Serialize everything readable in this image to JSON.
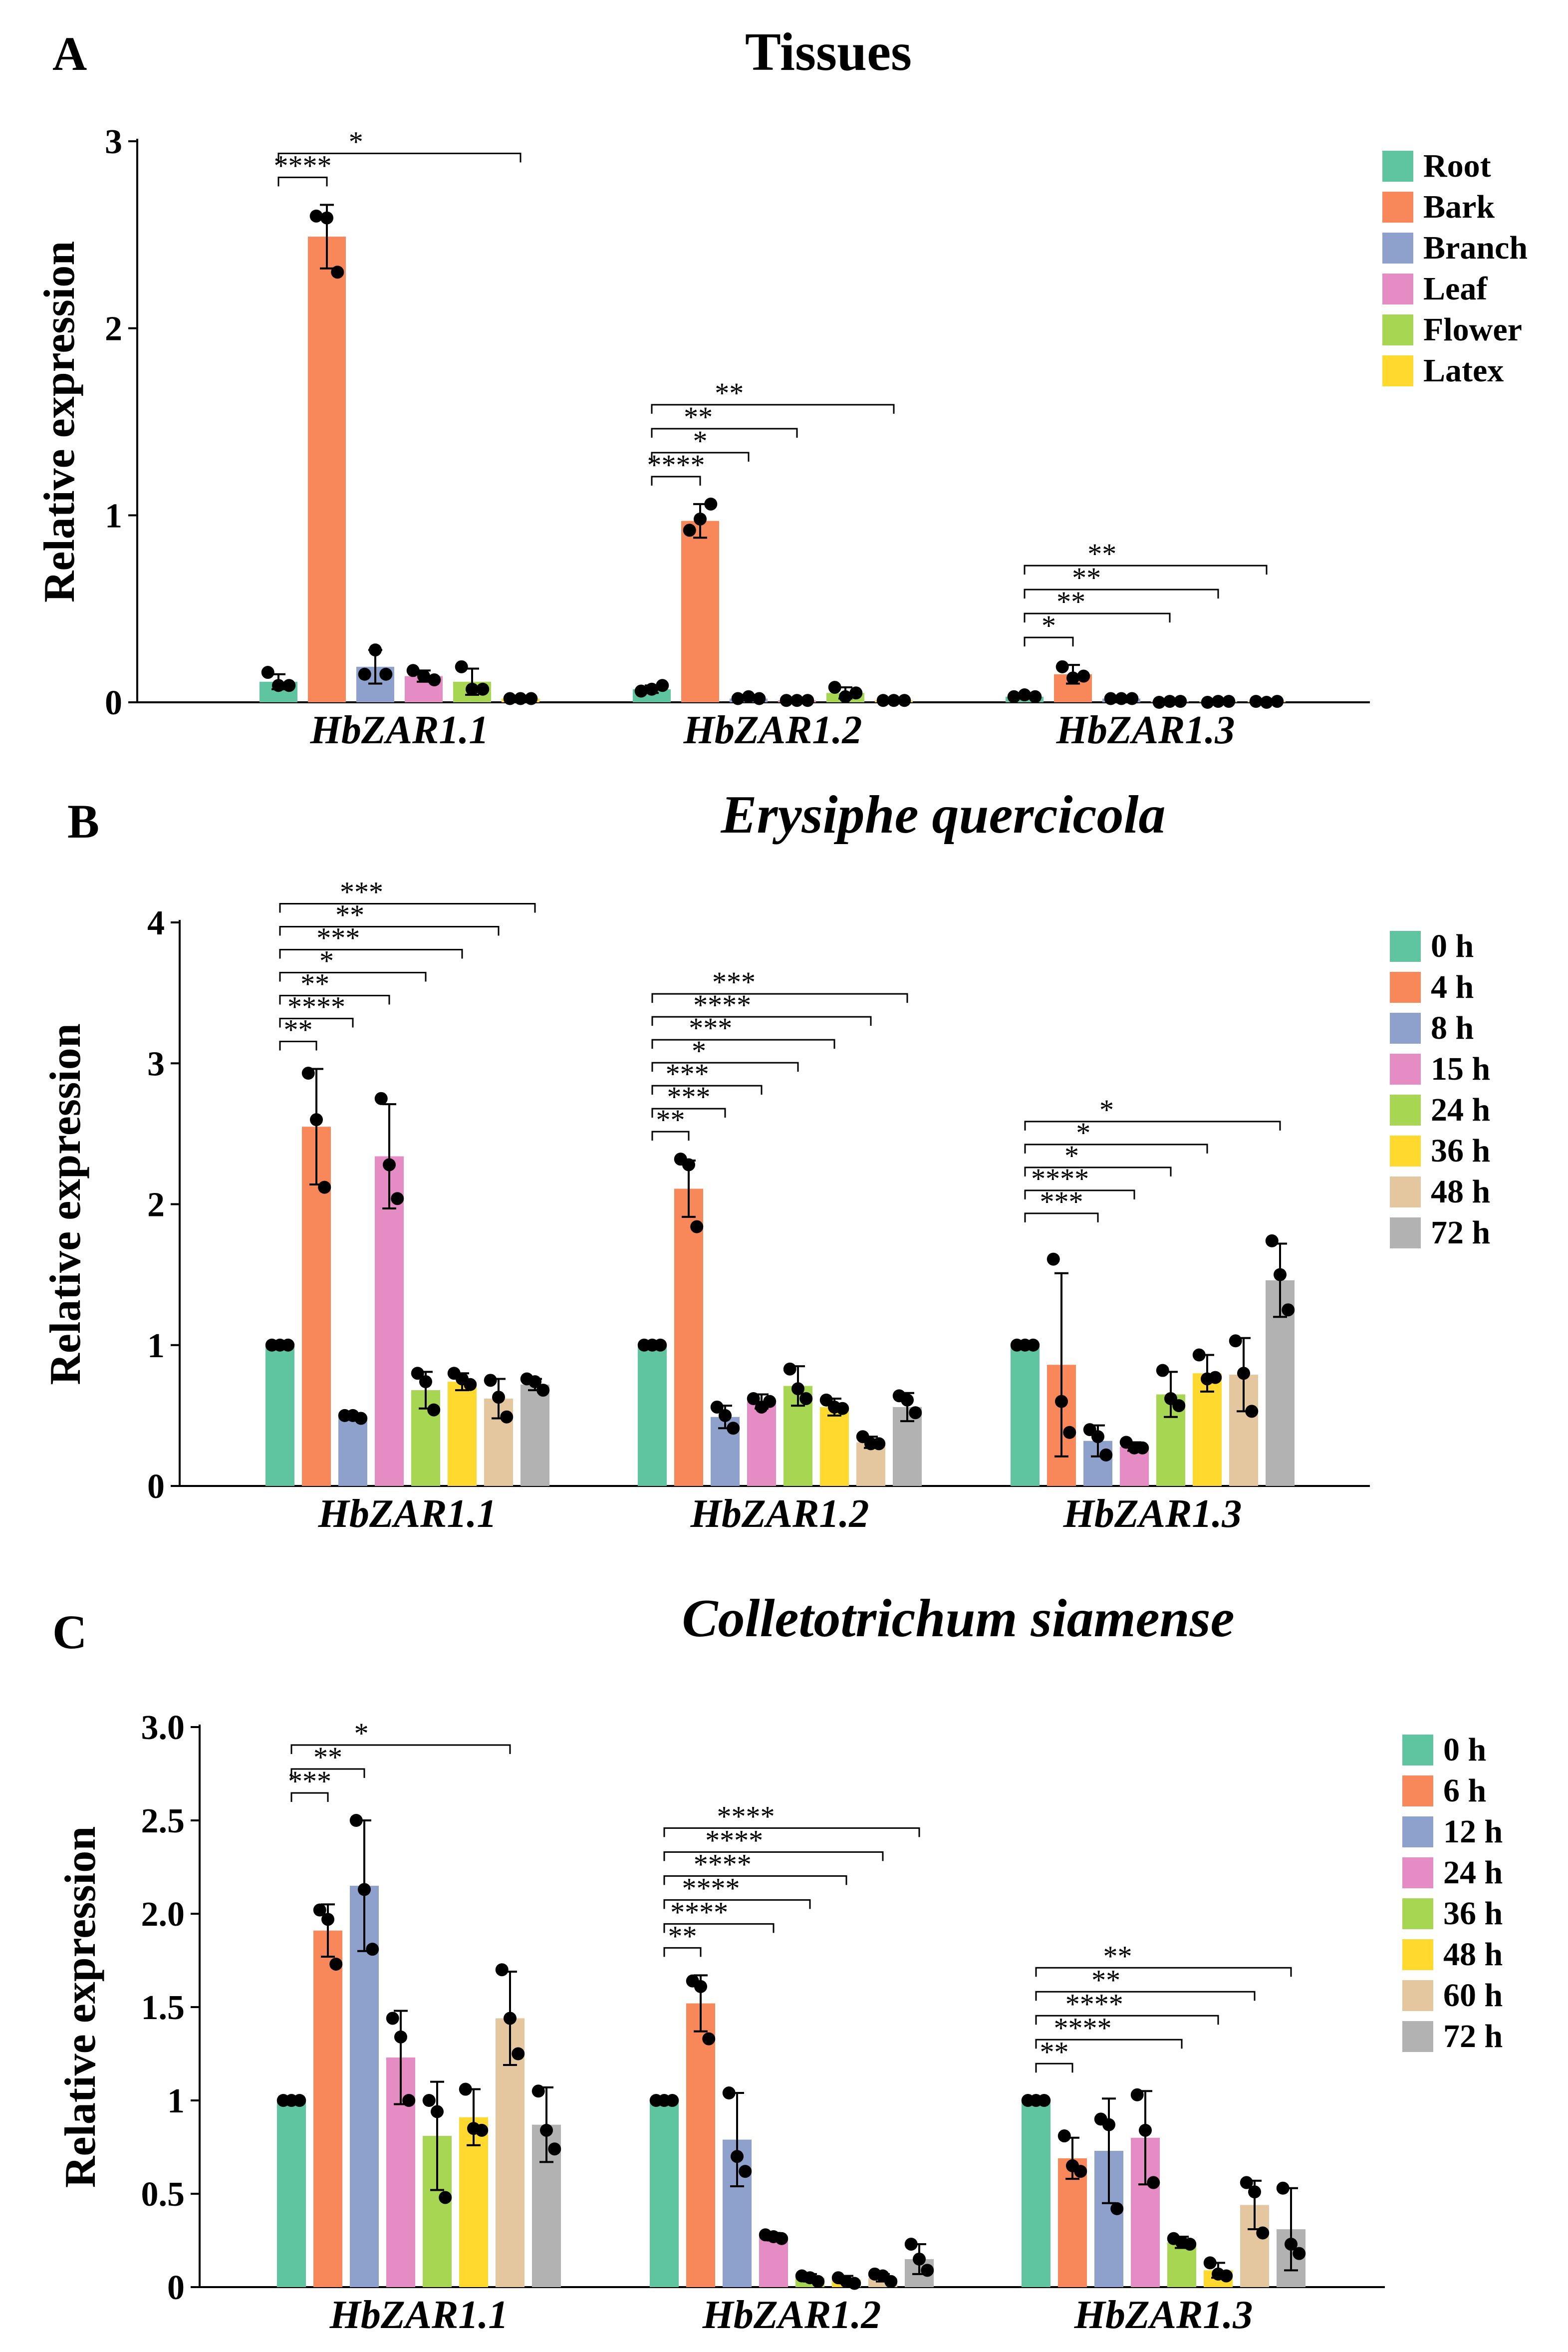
{
  "chart_data": [
    {
      "type": "bar",
      "panel": "A",
      "title": "Tissues",
      "title_italic": false,
      "ylabel": "Relative expression",
      "ylim": [
        0,
        3
      ],
      "yticks": [
        "0",
        "1",
        "2",
        "3"
      ],
      "ytick_values": [
        0,
        1,
        2,
        3
      ],
      "categories": [
        "HbZAR1.1",
        "HbZAR1.2",
        "HbZAR1.3"
      ],
      "colors": [
        "#5fc4a0",
        "#f8875a",
        "#8ea0cc",
        "#e48cc3",
        "#a6d652",
        "#ffd92e"
      ],
      "series": [
        {
          "name": "Root",
          "values": [
            0.11,
            0.07,
            0.03
          ],
          "errors": [
            0.04,
            0.02,
            0.01
          ],
          "points": [
            [
              0.16,
              0.09,
              0.09
            ],
            [
              0.06,
              0.07,
              0.09
            ],
            [
              0.03,
              0.04,
              0.03
            ]
          ]
        },
        {
          "name": "Bark",
          "values": [
            2.49,
            0.97,
            0.15
          ],
          "errors": [
            0.17,
            0.09,
            0.05
          ],
          "points": [
            [
              2.6,
              2.59,
              2.3
            ],
            [
              0.92,
              0.98,
              1.06
            ],
            [
              0.19,
              0.13,
              0.14
            ]
          ]
        },
        {
          "name": "Branch",
          "values": [
            0.19,
            0.02,
            0.02
          ],
          "errors": [
            0.09,
            0.01,
            0.01
          ],
          "points": [
            [
              0.15,
              0.28,
              0.15
            ],
            [
              0.02,
              0.03,
              0.02
            ],
            [
              0.02,
              0.02,
              0.02
            ]
          ]
        },
        {
          "name": "Leaf",
          "values": [
            0.14,
            0.01,
            0.005
          ],
          "errors": [
            0.03,
            0.005,
            0.005
          ],
          "points": [
            [
              0.17,
              0.14,
              0.12
            ],
            [
              0.01,
              0.01,
              0.01
            ],
            [
              0.0,
              0.005,
              0.005
            ]
          ]
        },
        {
          "name": "Flower",
          "values": [
            0.11,
            0.05,
            0.005
          ],
          "errors": [
            0.07,
            0.03,
            0.005
          ],
          "points": [
            [
              0.19,
              0.07,
              0.07
            ],
            [
              0.08,
              0.03,
              0.05
            ],
            [
              0.0,
              0.005,
              0.005
            ]
          ]
        },
        {
          "name": "Latex",
          "values": [
            0.02,
            0.01,
            0.005
          ],
          "errors": [
            0.01,
            0.005,
            0.005
          ],
          "points": [
            [
              0.02,
              0.02,
              0.02
            ],
            [
              0.01,
              0.01,
              0.01
            ],
            [
              0.005,
              0.0,
              0.005
            ]
          ]
        }
      ],
      "significance": [
        {
          "group": 0,
          "from": 0,
          "to": 1,
          "label": "****"
        },
        {
          "group": 0,
          "from": 0,
          "to": 5,
          "label": "*"
        },
        {
          "group": 1,
          "from": 0,
          "to": 1,
          "label": "****"
        },
        {
          "group": 1,
          "from": 0,
          "to": 2,
          "label": "*"
        },
        {
          "group": 1,
          "from": 0,
          "to": 3,
          "label": "**"
        },
        {
          "group": 1,
          "from": 0,
          "to": 5,
          "label": "**"
        },
        {
          "group": 2,
          "from": 0,
          "to": 1,
          "label": "*"
        },
        {
          "group": 2,
          "from": 0,
          "to": 3,
          "label": "**"
        },
        {
          "group": 2,
          "from": 0,
          "to": 4,
          "label": "**"
        },
        {
          "group": 2,
          "from": 0,
          "to": 5,
          "label": "**"
        }
      ]
    },
    {
      "type": "bar",
      "panel": "B",
      "title": "Erysiphe quercicola",
      "title_italic": true,
      "ylabel": "Relative expression",
      "ylim": [
        0,
        4
      ],
      "yticks": [
        "0",
        "1",
        "2",
        "3",
        "4"
      ],
      "ytick_values": [
        0,
        1,
        2,
        3,
        4
      ],
      "categories": [
        "HbZAR1.1",
        "HbZAR1.2",
        "HbZAR1.3"
      ],
      "colors": [
        "#5fc4a0",
        "#f8875a",
        "#8ea0cc",
        "#e48cc3",
        "#a6d652",
        "#ffd92e",
        "#e4c79e",
        "#b2b2b2"
      ],
      "series": [
        {
          "name": "0 h",
          "values": [
            1.0,
            1.0,
            1.0
          ],
          "errors": [
            0.0,
            0.0,
            0.0
          ],
          "points": [
            [
              1.0,
              1.0,
              1.0
            ],
            [
              1.0,
              1.0,
              1.0
            ],
            [
              1.0,
              1.0,
              1.0
            ]
          ]
        },
        {
          "name": "4 h",
          "values": [
            2.55,
            2.11,
            0.86
          ],
          "errors": [
            0.41,
            0.2,
            0.65
          ],
          "points": [
            [
              2.93,
              2.6,
              2.12
            ],
            [
              2.32,
              2.28,
              1.84
            ],
            [
              1.61,
              0.6,
              0.38
            ]
          ]
        },
        {
          "name": "8 h",
          "values": [
            0.49,
            0.49,
            0.32
          ],
          "errors": [
            0.02,
            0.08,
            0.11
          ],
          "points": [
            [
              0.5,
              0.5,
              0.48
            ],
            [
              0.56,
              0.5,
              0.41
            ],
            [
              0.4,
              0.35,
              0.22
            ]
          ]
        },
        {
          "name": "15 h",
          "values": [
            2.34,
            0.6,
            0.28
          ],
          "errors": [
            0.37,
            0.05,
            0.03
          ],
          "points": [
            [
              2.75,
              2.28,
              2.04
            ],
            [
              0.62,
              0.56,
              0.6
            ],
            [
              0.31,
              0.27,
              0.27
            ]
          ]
        },
        {
          "name": "24 h",
          "values": [
            0.68,
            0.71,
            0.65
          ],
          "errors": [
            0.13,
            0.14,
            0.16
          ],
          "points": [
            [
              0.8,
              0.74,
              0.54
            ],
            [
              0.83,
              0.69,
              0.62
            ],
            [
              0.82,
              0.62,
              0.57
            ]
          ]
        },
        {
          "name": "36 h",
          "values": [
            0.74,
            0.56,
            0.8
          ],
          "errors": [
            0.06,
            0.06,
            0.13
          ],
          "points": [
            [
              0.8,
              0.76,
              0.72
            ],
            [
              0.61,
              0.56,
              0.55
            ],
            [
              0.93,
              0.76,
              0.77
            ]
          ]
        },
        {
          "name": "48 h",
          "values": [
            0.62,
            0.31,
            0.79
          ],
          "errors": [
            0.14,
            0.04,
            0.26
          ],
          "points": [
            [
              0.75,
              0.63,
              0.49
            ],
            [
              0.35,
              0.3,
              0.3
            ],
            [
              1.03,
              0.8,
              0.53
            ]
          ]
        },
        {
          "name": "72 h",
          "values": [
            0.72,
            0.56,
            1.46
          ],
          "errors": [
            0.04,
            0.1,
            0.26
          ],
          "points": [
            [
              0.76,
              0.74,
              0.68
            ],
            [
              0.64,
              0.61,
              0.52
            ],
            [
              1.74,
              1.5,
              1.25
            ]
          ]
        }
      ],
      "significance": [
        {
          "group": 0,
          "from": 0,
          "to": 1,
          "label": "**"
        },
        {
          "group": 0,
          "from": 0,
          "to": 2,
          "label": "****"
        },
        {
          "group": 0,
          "from": 0,
          "to": 3,
          "label": "**"
        },
        {
          "group": 0,
          "from": 0,
          "to": 4,
          "label": "*"
        },
        {
          "group": 0,
          "from": 0,
          "to": 5,
          "label": "***"
        },
        {
          "group": 0,
          "from": 0,
          "to": 6,
          "label": "**"
        },
        {
          "group": 0,
          "from": 0,
          "to": 7,
          "label": "***"
        },
        {
          "group": 1,
          "from": 0,
          "to": 1,
          "label": "**"
        },
        {
          "group": 1,
          "from": 0,
          "to": 2,
          "label": "***"
        },
        {
          "group": 1,
          "from": 0,
          "to": 3,
          "label": "***"
        },
        {
          "group": 1,
          "from": 0,
          "to": 4,
          "label": "*"
        },
        {
          "group": 1,
          "from": 0,
          "to": 5,
          "label": "***"
        },
        {
          "group": 1,
          "from": 0,
          "to": 6,
          "label": "****"
        },
        {
          "group": 1,
          "from": 0,
          "to": 7,
          "label": "***"
        },
        {
          "group": 2,
          "from": 0,
          "to": 2,
          "label": "***"
        },
        {
          "group": 2,
          "from": 0,
          "to": 3,
          "label": "****"
        },
        {
          "group": 2,
          "from": 0,
          "to": 4,
          "label": "*"
        },
        {
          "group": 2,
          "from": 0,
          "to": 5,
          "label": "*"
        },
        {
          "group": 2,
          "from": 0,
          "to": 7,
          "label": "*"
        }
      ]
    },
    {
      "type": "bar",
      "panel": "C",
      "title": "Colletotrichum siamense",
      "title_italic": true,
      "ylabel": "Relative expression",
      "ylim": [
        0,
        3
      ],
      "yticks": [
        "0",
        "0.5",
        "1",
        "1.5",
        "2.0",
        "2.5",
        "3.0"
      ],
      "ytick_values": [
        0,
        0.5,
        1,
        1.5,
        2,
        2.5,
        3
      ],
      "categories": [
        "HbZAR1.1",
        "HbZAR1.2",
        "HbZAR1.3"
      ],
      "colors": [
        "#5fc4a0",
        "#f8875a",
        "#8ea0cc",
        "#e48cc3",
        "#a6d652",
        "#ffd92e",
        "#e4c79e",
        "#b2b2b2"
      ],
      "series": [
        {
          "name": "0 h",
          "values": [
            1.0,
            1.0,
            1.0
          ],
          "errors": [
            0.0,
            0.0,
            0.0
          ],
          "points": [
            [
              1.0,
              1.0,
              1.0
            ],
            [
              1.0,
              1.0,
              1.0
            ],
            [
              1.0,
              1.0,
              1.0
            ]
          ]
        },
        {
          "name": "6 h",
          "values": [
            1.91,
            1.52,
            0.69
          ],
          "errors": [
            0.14,
            0.15,
            0.11
          ],
          "points": [
            [
              2.02,
              1.97,
              1.73
            ],
            [
              1.64,
              1.61,
              1.33
            ],
            [
              0.81,
              0.65,
              0.62
            ]
          ]
        },
        {
          "name": "12 h",
          "values": [
            2.15,
            0.79,
            0.73
          ],
          "errors": [
            0.35,
            0.25,
            0.28
          ],
          "points": [
            [
              2.5,
              2.13,
              1.81
            ],
            [
              1.04,
              0.7,
              0.62
            ],
            [
              0.9,
              0.87,
              0.42
            ]
          ]
        },
        {
          "name": "24 h",
          "values": [
            1.23,
            0.27,
            0.8
          ],
          "errors": [
            0.25,
            0.02,
            0.25
          ],
          "points": [
            [
              1.44,
              1.34,
              1.0
            ],
            [
              0.28,
              0.27,
              0.26
            ],
            [
              1.03,
              0.84,
              0.56
            ]
          ]
        },
        {
          "name": "36 h",
          "values": [
            0.81,
            0.05,
            0.24
          ],
          "errors": [
            0.29,
            0.02,
            0.03
          ],
          "points": [
            [
              1.0,
              0.94,
              0.48
            ],
            [
              0.06,
              0.05,
              0.03
            ],
            [
              0.26,
              0.24,
              0.23
            ]
          ]
        },
        {
          "name": "48 h",
          "values": [
            0.91,
            0.04,
            0.09
          ],
          "errors": [
            0.15,
            0.02,
            0.04
          ],
          "points": [
            [
              1.06,
              0.85,
              0.84
            ],
            [
              0.05,
              0.03,
              0.02
            ],
            [
              0.13,
              0.07,
              0.06
            ]
          ]
        },
        {
          "name": "60 h",
          "values": [
            1.44,
            0.05,
            0.44
          ],
          "errors": [
            0.25,
            0.02,
            0.13
          ],
          "points": [
            [
              1.7,
              1.44,
              1.25
            ],
            [
              0.07,
              0.06,
              0.03
            ],
            [
              0.56,
              0.51,
              0.29
            ]
          ]
        },
        {
          "name": "72 h",
          "values": [
            0.87,
            0.15,
            0.31
          ],
          "errors": [
            0.2,
            0.08,
            0.22
          ],
          "points": [
            [
              1.05,
              0.84,
              0.74
            ],
            [
              0.23,
              0.15,
              0.09
            ],
            [
              0.53,
              0.23,
              0.18
            ]
          ]
        }
      ],
      "significance": [
        {
          "group": 0,
          "from": 0,
          "to": 1,
          "label": "***"
        },
        {
          "group": 0,
          "from": 0,
          "to": 2,
          "label": "**"
        },
        {
          "group": 0,
          "from": 0,
          "to": 6,
          "label": "*"
        },
        {
          "group": 1,
          "from": 0,
          "to": 1,
          "label": "**"
        },
        {
          "group": 1,
          "from": 0,
          "to": 3,
          "label": "****"
        },
        {
          "group": 1,
          "from": 0,
          "to": 4,
          "label": "****"
        },
        {
          "group": 1,
          "from": 0,
          "to": 5,
          "label": "****"
        },
        {
          "group": 1,
          "from": 0,
          "to": 6,
          "label": "****"
        },
        {
          "group": 1,
          "from": 0,
          "to": 7,
          "label": "****"
        },
        {
          "group": 2,
          "from": 0,
          "to": 1,
          "label": "**"
        },
        {
          "group": 2,
          "from": 0,
          "to": 4,
          "label": "****"
        },
        {
          "group": 2,
          "from": 0,
          "to": 5,
          "label": "****"
        },
        {
          "group": 2,
          "from": 0,
          "to": 6,
          "label": "**"
        },
        {
          "group": 2,
          "from": 0,
          "to": 7,
          "label": "**"
        }
      ]
    }
  ]
}
